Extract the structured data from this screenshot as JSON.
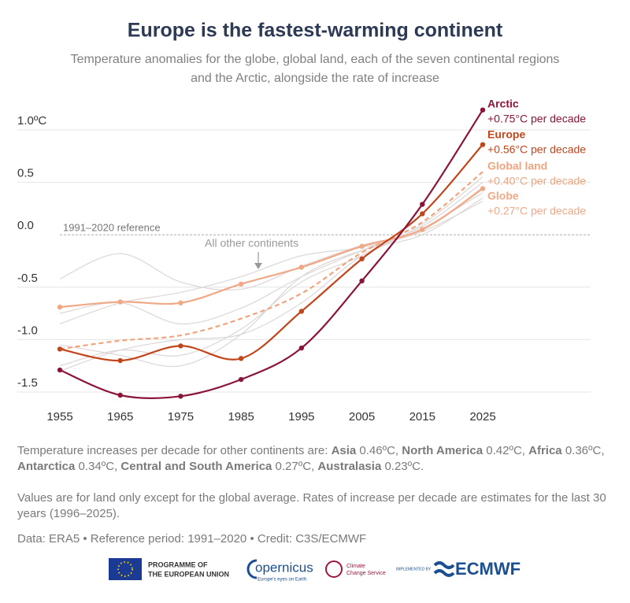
{
  "chart_data": {
    "type": "line",
    "title": "Europe is the fastest-warming continent",
    "subtitle": [
      "Temperature anomalies for the globe, global land, each of the seven continental regions",
      "and the Arctic, alongside the rate of increase"
    ],
    "x": [
      1955,
      1965,
      1975,
      1985,
      1995,
      2005,
      2015,
      2025
    ],
    "xlim": [
      1955,
      2025
    ],
    "xticks": [
      1955,
      1965,
      1975,
      1985,
      1995,
      2005,
      2015,
      2025
    ],
    "ylim": [
      -1.5,
      1.0
    ],
    "yticks": [
      {
        "value": 1.0,
        "label": "1.0ºC"
      },
      0.5,
      {
        "value": 0,
        "label": "0.0"
      },
      -0.5,
      {
        "value": -1.0,
        "label": "-1.0"
      },
      -1.5
    ],
    "grid": true,
    "reference_label": "1991–2020 reference",
    "others_label": "All other continents",
    "series": [
      {
        "name": "Arctic",
        "rate": "+0.75°C per decade",
        "color": "#8b1538",
        "markers": true,
        "values": [
          -1.29,
          -1.53,
          -1.54,
          -1.38,
          -1.08,
          -0.44,
          0.29,
          1.19
        ]
      },
      {
        "name": "Europe",
        "rate": "+0.56°C per decade",
        "color": "#c2461c",
        "markers": true,
        "values": [
          -1.09,
          -1.2,
          -1.06,
          -1.18,
          -0.73,
          -0.23,
          0.2,
          0.86
        ]
      },
      {
        "name": "Global land",
        "rate": "+0.40°C per decade",
        "color": "#f0a47e",
        "markers": false,
        "dashed": true,
        "values": [
          -1.09,
          -1.01,
          -0.96,
          -0.8,
          -0.56,
          -0.17,
          0.12,
          0.6
        ]
      },
      {
        "name": "Globe",
        "rate": "+0.27°C per decade",
        "color": "#f0a886",
        "markers": true,
        "values": [
          -0.69,
          -0.64,
          -0.65,
          -0.47,
          -0.31,
          -0.11,
          0.05,
          0.44
        ]
      }
    ],
    "other_color": "#ddd6d6",
    "other_series": [
      [
        -0.42,
        -0.18,
        -0.45,
        -0.52,
        -0.3,
        -0.1,
        0.05,
        0.45
      ],
      [
        -0.85,
        -0.65,
        -0.55,
        -0.4,
        -0.2,
        -0.12,
        0.03,
        0.32
      ],
      [
        -0.75,
        -0.65,
        -0.85,
        -0.7,
        -0.4,
        -0.15,
        0.08,
        0.5
      ],
      [
        -1.25,
        -1.1,
        -1.15,
        -0.9,
        -0.45,
        -0.2,
        0.1,
        0.55
      ],
      [
        -1.3,
        -1.1,
        -1.0,
        -0.95,
        -0.65,
        -0.2,
        0.06,
        0.4
      ],
      [
        -1.05,
        -1.15,
        -1.25,
        -0.95,
        -0.4,
        -0.15,
        0.0,
        0.35
      ]
    ]
  },
  "notes": {
    "continents_intro": "Temperature increases per decade for other continents are:",
    "continents": [
      {
        "name": "Asia",
        "rate": "0.46ºC,"
      },
      {
        "name": "North America",
        "rate": "0.42ºC,"
      },
      {
        "name": "Africa",
        "rate": "0.36ºC,"
      },
      {
        "name": "Antarctica",
        "rate": "0.34ºC,"
      },
      {
        "name": "Central and South America",
        "rate": "0.27ºC,"
      },
      {
        "name": "Australasia",
        "rate": "0.23ºC."
      }
    ],
    "method": "Values are for land only except for the global average. Rates of increase per decade are estimates for the last 30 years (1996–2025).",
    "source": "Data: ERA5 • Reference period: 1991–2020 • Credit: C3S/ECMWF"
  },
  "logos": {
    "eu": [
      "PROGRAMME OF",
      "THE EUROPEAN UNION"
    ],
    "copernicus": "opernicus",
    "copernicus_tagline": "Europe's eyes on Earth",
    "c3s": [
      "Climate",
      "Change Service"
    ],
    "implemented": "IMPLEMENTED BY",
    "ecmwf": "ECMWF"
  }
}
